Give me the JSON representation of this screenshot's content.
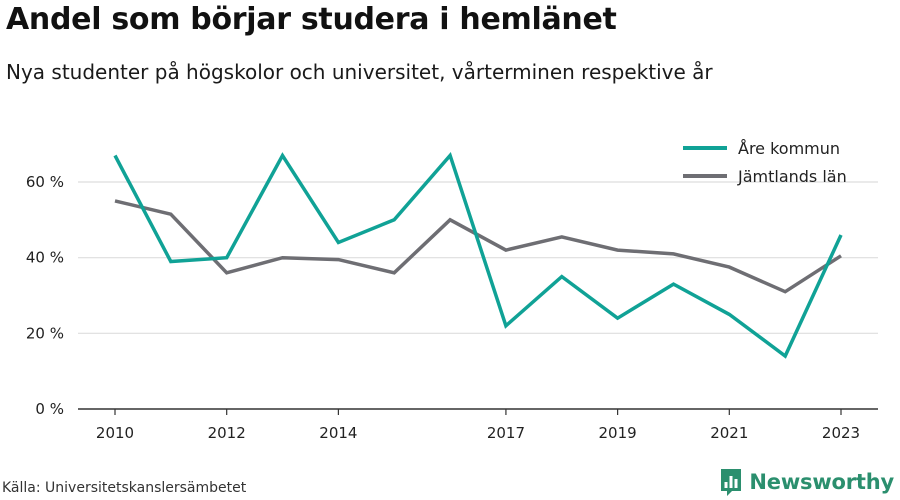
{
  "title": "Andel som börjar studera i hemlänet",
  "subtitle": "Nya studenter på högskolor och universitet, vårterminen respektive år",
  "source": "Källa: Universitetskanslersämbetet",
  "brand": {
    "name": "Newsworthy",
    "icon": "newsworthy-logo-icon",
    "color": "#2b8f6e"
  },
  "chart_data": {
    "type": "line",
    "title": "Andel som börjar studera i hemlänet",
    "subtitle": "Nya studenter på högskolor och universitet, vårterminen respektive år",
    "x": [
      2010,
      2011,
      2012,
      2013,
      2014,
      2015,
      2016,
      2017,
      2018,
      2019,
      2020,
      2021,
      2022,
      2023
    ],
    "x_ticks": [
      "2010",
      "2012",
      "2014",
      "2017",
      "2019",
      "2021",
      "2023"
    ],
    "y_ticks": [
      "0 %",
      "20 %",
      "40 %",
      "60 %"
    ],
    "ylim": [
      0,
      70
    ],
    "grid": true,
    "legend": "top-right",
    "series": [
      {
        "name": "Åre kommun",
        "color": "#10a296",
        "values": [
          67,
          39,
          40,
          67,
          44,
          50,
          67,
          22,
          35,
          24,
          33,
          25,
          14,
          46
        ]
      },
      {
        "name": "Jämtlands län",
        "color": "#6e6e73",
        "values": [
          55,
          51.5,
          36,
          40,
          39.5,
          36,
          50,
          42,
          45.5,
          42,
          41,
          37.5,
          31,
          40.5
        ]
      }
    ]
  }
}
